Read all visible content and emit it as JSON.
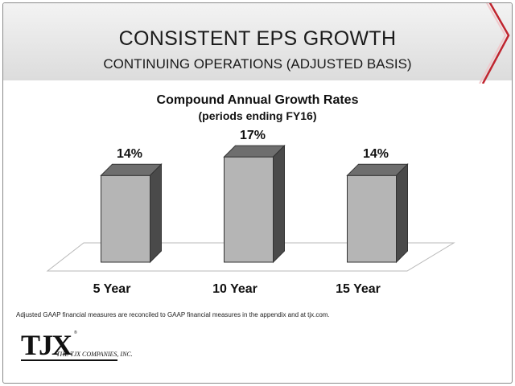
{
  "slide": {
    "title": "CONSISTENT EPS GROWTH",
    "subtitle": "CONTINUING OPERATIONS (ADJUSTED BASIS)",
    "footnote": "Adjusted GAAP financial measures are reconciled to GAAP financial measures in the appendix and at tjx.com.",
    "accent_color": "#c0252f"
  },
  "logo": {
    "mark": "TJX",
    "trademark": "®",
    "company_name": "THE TJX COMPANIES, INC."
  },
  "chart_data": {
    "type": "bar",
    "title": "Compound Annual Growth Rates",
    "subtitle": "(periods ending FY16)",
    "categories": [
      "5 Year",
      "10 Year",
      "15 Year"
    ],
    "values": [
      14,
      17,
      14
    ],
    "value_labels": [
      "14%",
      "17%",
      "14%"
    ],
    "unit": "%",
    "style": "3d",
    "bar_color": "#b5b5b5",
    "grid": false,
    "legend": "none"
  }
}
